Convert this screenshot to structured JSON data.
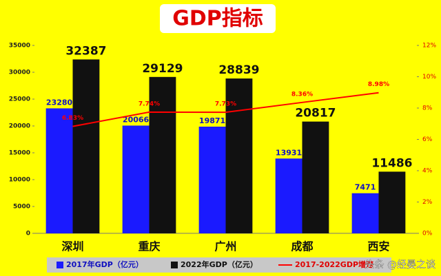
{
  "chart_data": {
    "type": "bar",
    "title": "GDP指标",
    "categories": [
      "深圳",
      "重庆",
      "广州",
      "成都",
      "西安"
    ],
    "series": [
      {
        "name": "2017年GDP（亿元）",
        "color": "#1a1aff",
        "values": [
          23280,
          20066,
          19871,
          13931,
          7471
        ]
      },
      {
        "name": "2022年GDP（亿元）",
        "color": "#111111",
        "values": [
          32387,
          29129,
          28839,
          20817,
          11486
        ]
      },
      {
        "name": "2017-2022GDP增速",
        "color": "#ff0000",
        "type": "line",
        "axis": "y2",
        "values": [
          6.83,
          7.74,
          7.73,
          8.36,
          8.98
        ],
        "value_labels": [
          "6.83%",
          "7.74%",
          "7.73%",
          "8.36%",
          "8.98%"
        ]
      }
    ],
    "ylim": [
      0,
      35000
    ],
    "yticks": [
      0,
      5000,
      10000,
      15000,
      20000,
      25000,
      30000,
      35000
    ],
    "y2lim": [
      0,
      12
    ],
    "y2ticks": [
      {
        "value": 0,
        "label": "0%"
      },
      {
        "value": 2,
        "label": "2%"
      },
      {
        "value": 4,
        "label": "4%"
      },
      {
        "value": 6,
        "label": "6%"
      },
      {
        "value": 8,
        "label": "8%"
      },
      {
        "value": 10,
        "label": "10%"
      },
      {
        "value": 12,
        "label": "12%"
      }
    ],
    "legend": "bottom",
    "watermark": "头条 @经晏之谈"
  }
}
